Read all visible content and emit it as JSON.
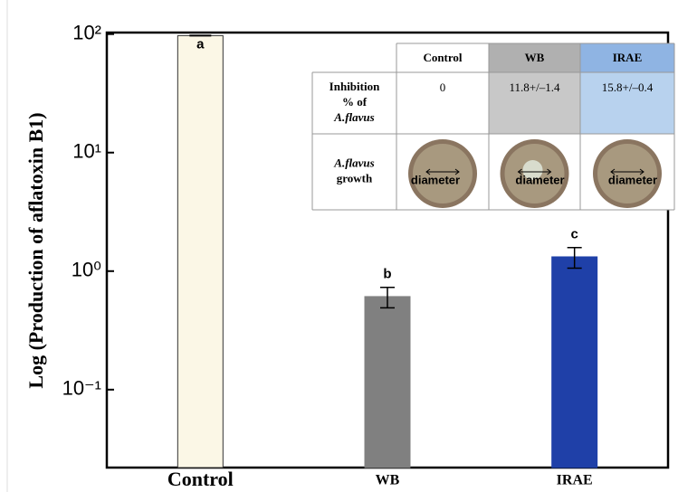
{
  "chart_data": {
    "type": "bar",
    "log_scale": true,
    "y_label": "Log (Production of aflatoxin B1)",
    "categories": [
      "Control",
      "WB",
      "IRAE"
    ],
    "values": [
      97,
      0.61,
      1.32
    ],
    "errors": [
      null,
      0.12,
      0.26
    ],
    "significance": [
      "a",
      "b",
      "c"
    ],
    "colors": [
      "#fbf7e6",
      "#808080",
      "#1f40a8"
    ],
    "ylim": [
      0.022,
      103
    ],
    "yticks": [
      {
        "value": 0.1,
        "label": "10⁻¹"
      },
      {
        "value": 1,
        "label": "10⁰"
      },
      {
        "value": 10,
        "label": "10¹"
      },
      {
        "value": 100,
        "label": "10²"
      }
    ],
    "inset_table": {
      "columns": [
        "Control",
        "WB",
        "IRAE"
      ],
      "rows": [
        {
          "label": [
            "Inhibition",
            "% of",
            "A.flavus"
          ],
          "cells": [
            "0",
            "11.8+/–1.4",
            "15.8+/–0.4"
          ]
        },
        {
          "label": [
            "A.flavus",
            "growth"
          ],
          "caption": "diameter"
        }
      ]
    }
  }
}
